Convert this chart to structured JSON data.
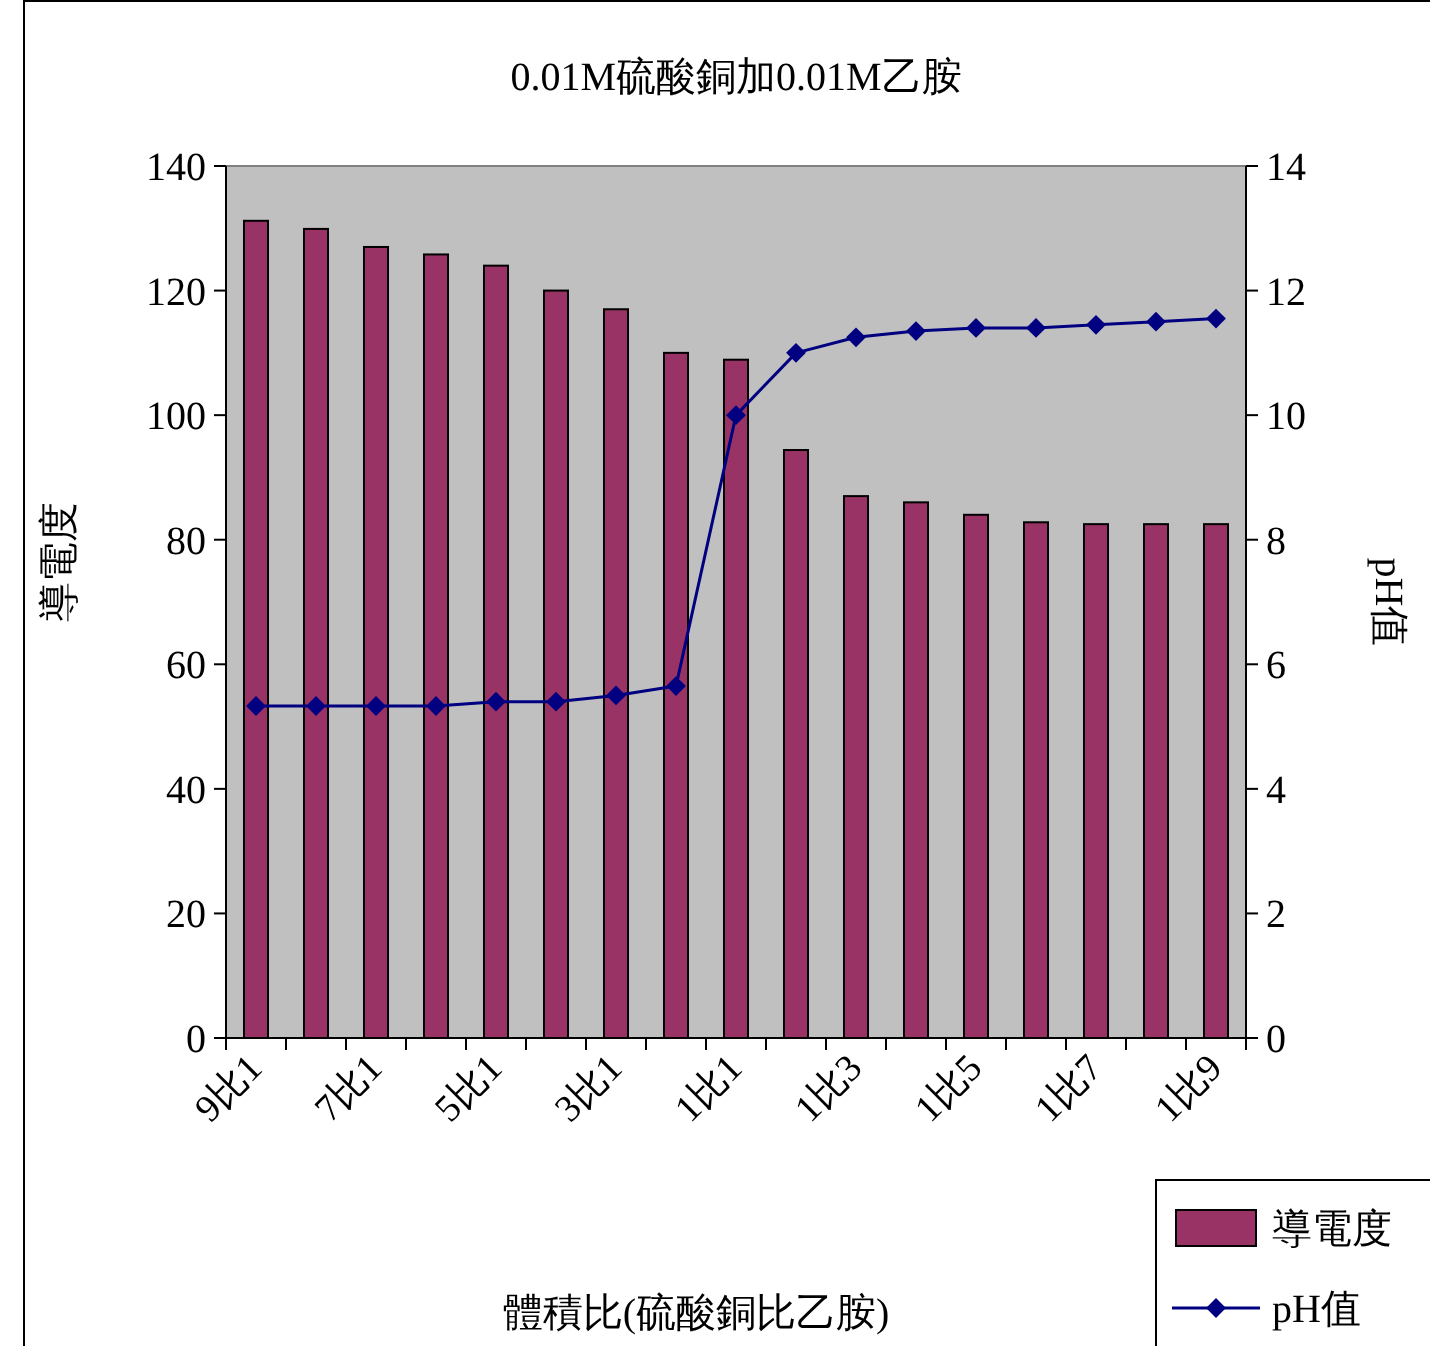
{
  "chart_data": {
    "type": "bar",
    "title": "0.01M硫酸銅加0.01M乙胺",
    "xlabel": "體積比(硫酸銅比乙胺)",
    "ylabel": "導電度",
    "y2label": "pH值",
    "categories": [
      "9比1",
      null,
      "7比1",
      null,
      "5比1",
      null,
      "3比1",
      null,
      "1比1",
      null,
      "1比3",
      null,
      "1比5",
      null,
      "1比7",
      null,
      "1比9"
    ],
    "series": [
      {
        "name": "導電度",
        "color": "#993366",
        "values": [
          131.2,
          129.9,
          127,
          125.8,
          124,
          120,
          117,
          110,
          108.9,
          94.4,
          87,
          86,
          84,
          82.8,
          82.5,
          82.5,
          82.5
        ]
      },
      {
        "name": "pH值",
        "type": "line",
        "axis": "y2",
        "color": "#000080",
        "marker": "diamond",
        "values": [
          5.33,
          5.33,
          5.33,
          5.33,
          5.4,
          5.4,
          5.5,
          5.65,
          10.0,
          11.0,
          11.25,
          11.35,
          11.4,
          11.4,
          11.45,
          11.5,
          11.55
        ]
      }
    ],
    "ylim": [
      0,
      140
    ],
    "yticks": [
      0,
      20,
      40,
      60,
      80,
      100,
      120,
      140
    ],
    "y2lim": [
      0,
      14
    ],
    "y2ticks": [
      0,
      2,
      4,
      6,
      8,
      10,
      12,
      14
    ],
    "grid": false,
    "legend": "bottom right"
  }
}
